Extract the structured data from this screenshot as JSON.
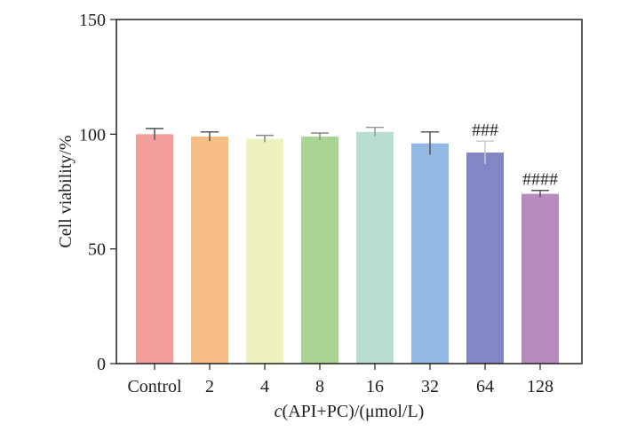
{
  "chart_data": {
    "type": "bar",
    "title": "",
    "xlabel_italic": "c",
    "xlabel_rest": "(API+PC)/(μmol/L)",
    "ylabel": "Cell viability/%",
    "categories": [
      "Control",
      "2",
      "4",
      "8",
      "16",
      "32",
      "64",
      "128"
    ],
    "values": [
      100,
      99,
      98,
      99,
      101,
      96,
      92,
      74
    ],
    "errors": [
      2.5,
      2,
      1.5,
      1.5,
      2,
      5,
      5,
      1.5
    ],
    "annotations": [
      "",
      "",
      "",
      "",
      "",
      "",
      "###",
      "####"
    ],
    "colors": [
      "#f29e9c",
      "#f6bd84",
      "#eef2c0",
      "#aad494",
      "#b8ddd3",
      "#93b8e2",
      "#8286c2",
      "#b68cbe"
    ],
    "error_bar_colors": [
      "#555555",
      "#555555",
      "#888888",
      "#888888",
      "#999999",
      "#555555",
      "#cccccc",
      "#555555"
    ],
    "ylim": [
      0,
      150
    ],
    "yticks": [
      0,
      50,
      100,
      150
    ],
    "grid": false
  }
}
